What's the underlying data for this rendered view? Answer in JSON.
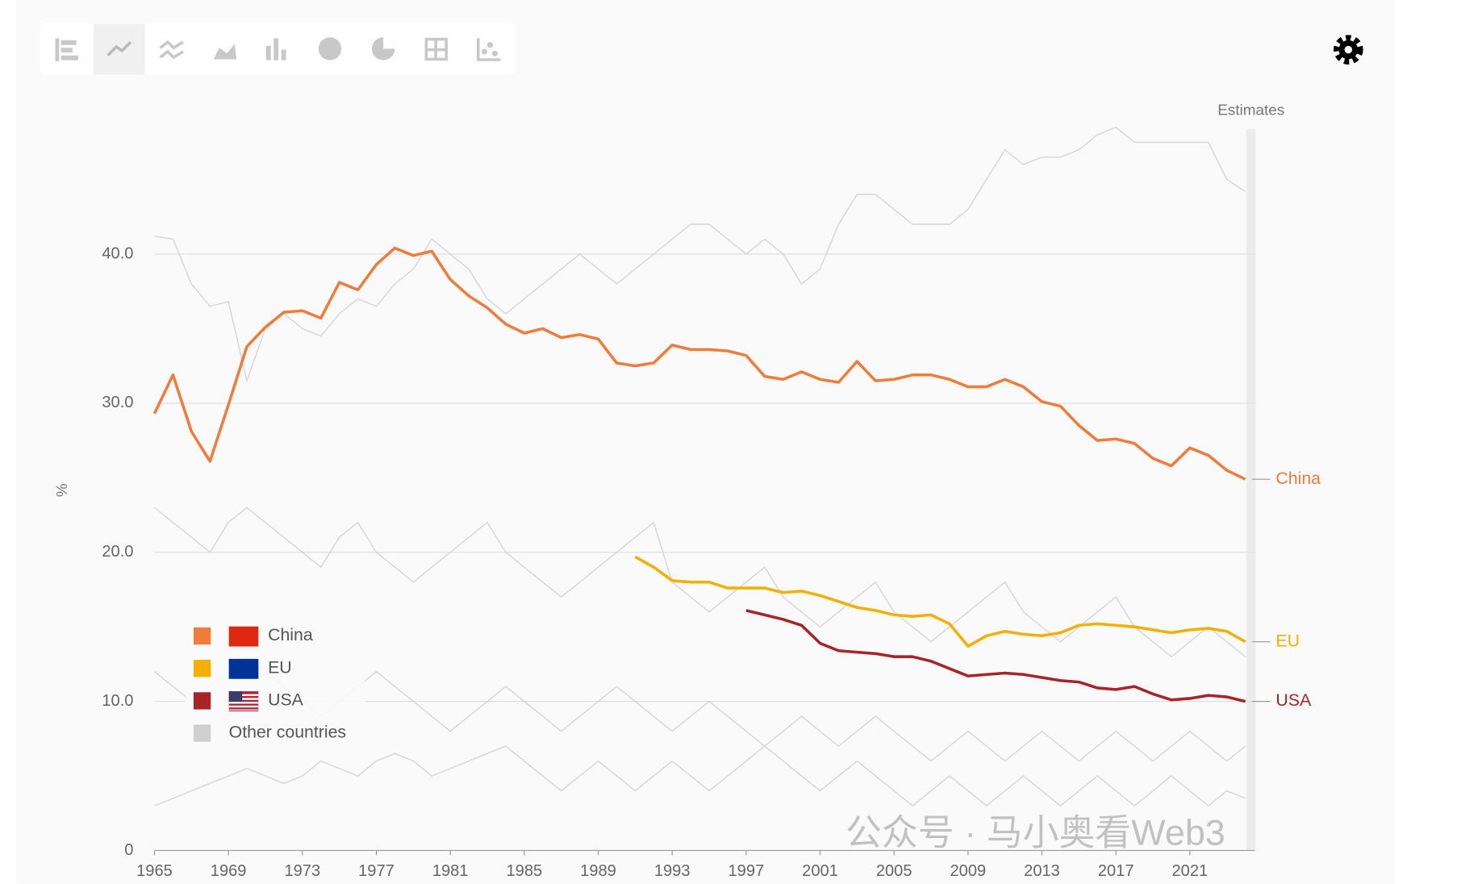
{
  "chart_data": {
    "type": "line",
    "y_label": "%",
    "annotation": "Estimates",
    "watermark": "公众号 · 马小奥看Web3",
    "x": [
      1965,
      1966,
      1967,
      1968,
      1969,
      1970,
      1971,
      1972,
      1973,
      1974,
      1975,
      1976,
      1977,
      1978,
      1979,
      1980,
      1981,
      1982,
      1983,
      1984,
      1985,
      1986,
      1987,
      1988,
      1989,
      1990,
      1991,
      1992,
      1993,
      1994,
      1995,
      1996,
      1997,
      1998,
      1999,
      2000,
      2001,
      2002,
      2003,
      2004,
      2005,
      2006,
      2007,
      2008,
      2009,
      2010,
      2011,
      2012,
      2013,
      2014,
      2015,
      2016,
      2017,
      2018,
      2019,
      2020,
      2021,
      2022,
      2023,
      2024
    ],
    "xlim": [
      1965,
      2024
    ],
    "xticks": [
      1965,
      1969,
      1973,
      1977,
      1981,
      1985,
      1989,
      1993,
      1997,
      2001,
      2005,
      2009,
      2013,
      2017,
      2021
    ],
    "ylim": [
      0,
      48.4
    ],
    "yticks": [
      0,
      {
        "value": 10,
        "label": "10.0"
      },
      {
        "value": 20,
        "label": "20.0"
      },
      {
        "value": 30,
        "label": "30.0"
      },
      {
        "value": 40,
        "label": "40.0"
      }
    ],
    "grid": true,
    "series": [
      {
        "name": "China",
        "color": "#f07c3c",
        "values": [
          29.3,
          31.9,
          28.1,
          26.1,
          29.9,
          33.8,
          35.1,
          36.1,
          36.2,
          35.7,
          38.1,
          37.6,
          39.3,
          40.4,
          39.9,
          40.2,
          38.3,
          37.2,
          36.4,
          35.3,
          34.7,
          35.0,
          34.4,
          34.6,
          34.3,
          32.7,
          32.5,
          32.7,
          33.9,
          33.6,
          33.6,
          33.5,
          33.2,
          31.8,
          31.6,
          32.1,
          31.6,
          31.4,
          32.8,
          31.5,
          31.6,
          31.9,
          31.9,
          31.6,
          31.1,
          31.1,
          31.6,
          31.1,
          30.1,
          29.8,
          28.5,
          27.5,
          27.6,
          27.3,
          26.3,
          25.8,
          27.0,
          26.5,
          25.5,
          24.9
        ]
      },
      {
        "name": "EU",
        "color": "#f4b000",
        "values": [
          null,
          null,
          null,
          null,
          null,
          null,
          null,
          null,
          null,
          null,
          null,
          null,
          null,
          null,
          null,
          null,
          null,
          null,
          null,
          null,
          null,
          null,
          null,
          null,
          null,
          null,
          19.7,
          19.0,
          18.1,
          18.0,
          18.0,
          17.6,
          17.6,
          17.6,
          17.3,
          17.4,
          17.1,
          16.7,
          16.3,
          16.1,
          15.8,
          15.7,
          15.8,
          15.2,
          13.7,
          14.4,
          14.7,
          14.5,
          14.4,
          14.6,
          15.1,
          15.2,
          15.1,
          15.0,
          14.8,
          14.6,
          14.8,
          14.9,
          14.7,
          14.0
        ]
      },
      {
        "name": "USA",
        "color": "#a82428",
        "values": [
          null,
          null,
          null,
          null,
          null,
          null,
          null,
          null,
          null,
          null,
          null,
          null,
          null,
          null,
          null,
          null,
          null,
          null,
          null,
          null,
          null,
          null,
          null,
          null,
          null,
          null,
          null,
          null,
          null,
          null,
          null,
          null,
          16.1,
          15.8,
          15.5,
          15.1,
          13.9,
          13.4,
          13.3,
          13.2,
          13.0,
          13.0,
          12.7,
          12.2,
          11.7,
          11.8,
          11.9,
          11.8,
          11.6,
          11.4,
          11.3,
          10.9,
          10.8,
          11.0,
          10.5,
          10.1,
          10.2,
          10.4,
          10.3,
          10.0
        ]
      }
    ],
    "other_countries": {
      "name": "Other countries",
      "color": "#cfcfcf",
      "lines": [
        [
          41.2,
          41,
          38,
          36.5,
          36.8,
          31.5,
          35,
          36,
          35,
          34.5,
          36,
          37,
          36.5,
          38,
          39,
          41,
          40,
          39,
          37,
          36,
          37,
          38,
          39,
          40,
          39,
          38,
          39,
          40,
          41,
          42,
          42,
          41,
          40,
          41,
          40,
          38,
          39,
          42,
          44,
          44,
          43,
          42,
          42,
          42,
          43,
          45,
          47,
          46,
          46.5,
          46.5,
          47,
          48,
          48.5,
          47.5,
          47.5,
          47.5,
          47.5,
          47.5,
          45,
          44.2
        ],
        [
          23,
          22,
          21,
          20,
          22,
          23,
          22,
          21,
          20,
          19,
          21,
          22,
          20,
          19,
          18,
          19,
          20,
          21,
          22,
          20,
          19,
          18,
          17,
          18,
          19,
          20,
          21,
          22,
          18,
          17,
          16,
          17,
          18,
          19,
          17,
          16,
          15,
          16,
          17,
          18,
          16,
          15,
          14,
          15,
          16,
          17,
          18,
          16,
          15,
          14,
          15,
          16,
          17,
          15,
          14,
          13,
          14,
          15,
          14,
          13
        ],
        [
          12,
          11,
          10,
          11,
          12,
          13,
          12,
          11,
          10,
          9,
          10,
          11,
          12,
          11,
          10,
          9,
          8,
          9,
          10,
          11,
          10,
          9,
          8,
          9,
          10,
          11,
          10,
          9,
          8,
          9,
          10,
          9,
          8,
          7,
          8,
          9,
          8,
          7,
          8,
          9,
          8,
          7,
          6,
          7,
          8,
          7,
          6,
          7,
          8,
          7,
          6,
          7,
          8,
          7,
          6,
          7,
          8,
          7,
          6,
          7
        ],
        [
          3,
          3.5,
          4,
          4.5,
          5,
          5.5,
          5,
          4.5,
          5,
          6,
          5.5,
          5,
          6,
          6.5,
          6,
          5,
          5.5,
          6,
          6.5,
          7,
          6,
          5,
          4,
          5,
          6,
          5,
          4,
          5,
          6,
          5,
          4,
          5,
          6,
          7,
          6,
          5,
          4,
          5,
          6,
          5,
          4,
          3,
          4,
          5,
          4,
          3,
          4,
          5,
          4,
          3,
          4,
          5,
          4,
          3,
          4,
          5,
          4,
          3,
          4,
          3.5
        ]
      ]
    }
  }
}
